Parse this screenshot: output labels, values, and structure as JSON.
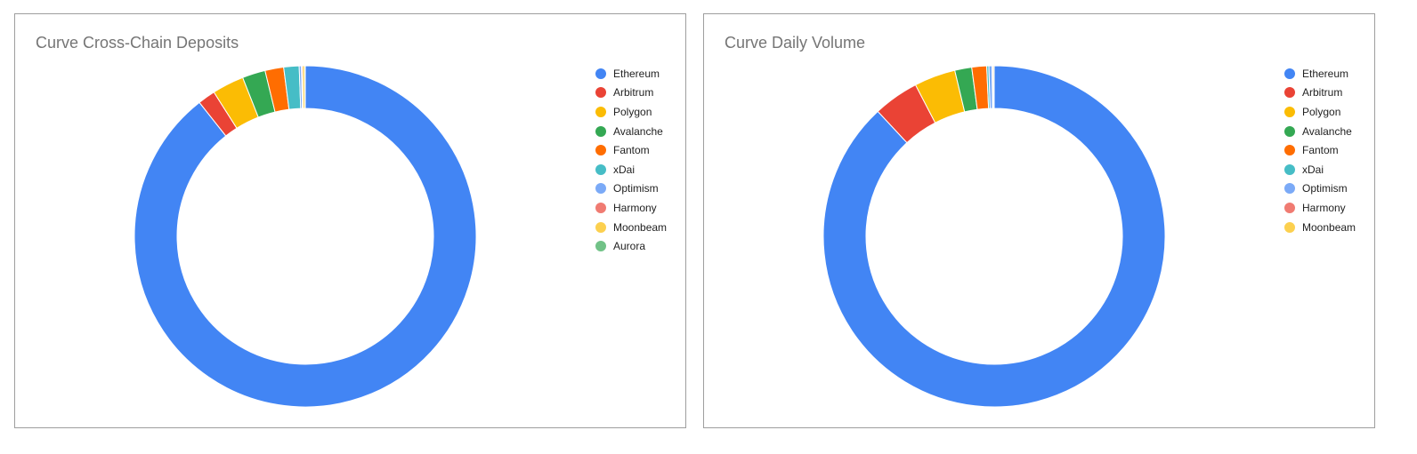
{
  "chart_data": [
    {
      "type": "pie",
      "donut": true,
      "title": "Curve Cross-Chain Deposits",
      "legend_position": "right",
      "categories": [
        "Ethereum",
        "Arbitrum",
        "Polygon",
        "Avalanche",
        "Fantom",
        "xDai",
        "Optimism",
        "Harmony",
        "Moonbeam",
        "Aurora"
      ],
      "values": [
        86.1,
        1.6,
        2.9,
        2.1,
        1.7,
        1.4,
        0.2,
        0.1,
        0.2,
        0.05
      ],
      "colors": [
        "#4285f4",
        "#ea4335",
        "#fbbc04",
        "#34a853",
        "#ff6d01",
        "#46bdc6",
        "#7baaf7",
        "#f07b72",
        "#fcd04f",
        "#71c287"
      ]
    },
    {
      "type": "pie",
      "donut": true,
      "title": "Curve Daily Volume",
      "legend_position": "right",
      "categories": [
        "Ethereum",
        "Arbitrum",
        "Polygon",
        "Avalanche",
        "Fantom",
        "xDai",
        "Optimism",
        "Harmony",
        "Moonbeam"
      ],
      "values": [
        87.9,
        4.3,
        3.9,
        1.6,
        1.4,
        0.2,
        0.3,
        0.1,
        0.1
      ],
      "colors": [
        "#4285f4",
        "#ea4335",
        "#fbbc04",
        "#34a853",
        "#ff6d01",
        "#46bdc6",
        "#7baaf7",
        "#f07b72",
        "#fcd04f"
      ]
    }
  ]
}
